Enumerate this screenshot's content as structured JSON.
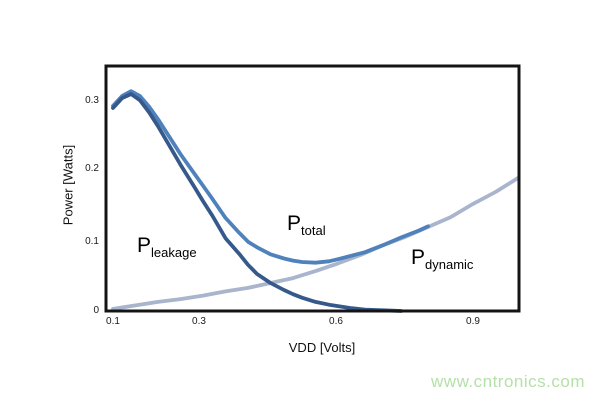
{
  "watermark": {
    "text": "www.cntronics.com",
    "color": "#b5e0a9"
  },
  "axis_color": "#141414",
  "chart_data": {
    "type": "line",
    "title": "",
    "xlabel": "VDD [Volts]",
    "ylabel": "Power [Watts]",
    "xlim": [
      0.08,
      1.0
    ],
    "ylim": [
      0,
      0.35
    ],
    "grid": false,
    "legend": "inline-labels-on-plot",
    "x_ticks": [
      0.1,
      0.3,
      0.6,
      0.9
    ],
    "y_ticks": [
      0,
      0.1,
      0.2,
      0.3
    ],
    "x_tick_labels": [
      "0.1",
      "0.3",
      "0.6",
      "0.9"
    ],
    "y_tick_labels": [
      "0",
      "0.1",
      "0.2",
      "0.3"
    ],
    "series": [
      {
        "name": "P_dynamic",
        "label_main": "P",
        "label_sub": "dynamic",
        "color": "#a9b4cd",
        "points": [
          [
            0.1,
            0.003
          ],
          [
            0.15,
            0.008
          ],
          [
            0.2,
            0.013
          ],
          [
            0.25,
            0.017
          ],
          [
            0.3,
            0.022
          ],
          [
            0.35,
            0.028
          ],
          [
            0.4,
            0.033
          ],
          [
            0.45,
            0.04
          ],
          [
            0.5,
            0.047
          ],
          [
            0.55,
            0.057
          ],
          [
            0.6,
            0.068
          ],
          [
            0.65,
            0.08
          ],
          [
            0.7,
            0.094
          ],
          [
            0.75,
            0.106
          ],
          [
            0.8,
            0.12
          ],
          [
            0.85,
            0.134
          ],
          [
            0.9,
            0.153
          ],
          [
            0.95,
            0.17
          ],
          [
            1.0,
            0.19
          ]
        ]
      },
      {
        "name": "P_total",
        "label_main": "P",
        "label_sub": "total",
        "color": "#4f81bd",
        "points": [
          [
            0.1,
            0.293
          ],
          [
            0.12,
            0.307
          ],
          [
            0.14,
            0.314
          ],
          [
            0.16,
            0.307
          ],
          [
            0.18,
            0.292
          ],
          [
            0.2,
            0.274
          ],
          [
            0.22,
            0.254
          ],
          [
            0.25,
            0.224
          ],
          [
            0.28,
            0.197
          ],
          [
            0.3,
            0.179
          ],
          [
            0.32,
            0.161
          ],
          [
            0.35,
            0.133
          ],
          [
            0.38,
            0.112
          ],
          [
            0.4,
            0.099
          ],
          [
            0.42,
            0.091
          ],
          [
            0.45,
            0.081
          ],
          [
            0.48,
            0.075
          ],
          [
            0.5,
            0.072
          ],
          [
            0.52,
            0.07
          ],
          [
            0.55,
            0.069
          ],
          [
            0.58,
            0.071
          ],
          [
            0.6,
            0.074
          ],
          [
            0.63,
            0.079
          ],
          [
            0.66,
            0.084
          ],
          [
            0.7,
            0.094
          ],
          [
            0.74,
            0.105
          ],
          [
            0.78,
            0.115
          ],
          [
            0.8,
            0.121
          ]
        ]
      },
      {
        "name": "P_leakage",
        "label_main": "P",
        "label_sub": "leakage",
        "color": "#36598c",
        "points": [
          [
            0.1,
            0.29
          ],
          [
            0.12,
            0.304
          ],
          [
            0.14,
            0.31
          ],
          [
            0.16,
            0.301
          ],
          [
            0.18,
            0.284
          ],
          [
            0.2,
            0.264
          ],
          [
            0.22,
            0.242
          ],
          [
            0.25,
            0.209
          ],
          [
            0.28,
            0.178
          ],
          [
            0.3,
            0.157
          ],
          [
            0.32,
            0.137
          ],
          [
            0.35,
            0.104
          ],
          [
            0.38,
            0.082
          ],
          [
            0.4,
            0.066
          ],
          [
            0.42,
            0.053
          ],
          [
            0.45,
            0.04
          ],
          [
            0.48,
            0.03
          ],
          [
            0.5,
            0.024
          ],
          [
            0.52,
            0.019
          ],
          [
            0.55,
            0.013
          ],
          [
            0.58,
            0.009
          ],
          [
            0.6,
            0.007
          ],
          [
            0.63,
            0.004
          ],
          [
            0.66,
            0.002
          ],
          [
            0.7,
            0.001
          ],
          [
            0.74,
            0.0
          ]
        ]
      }
    ]
  }
}
